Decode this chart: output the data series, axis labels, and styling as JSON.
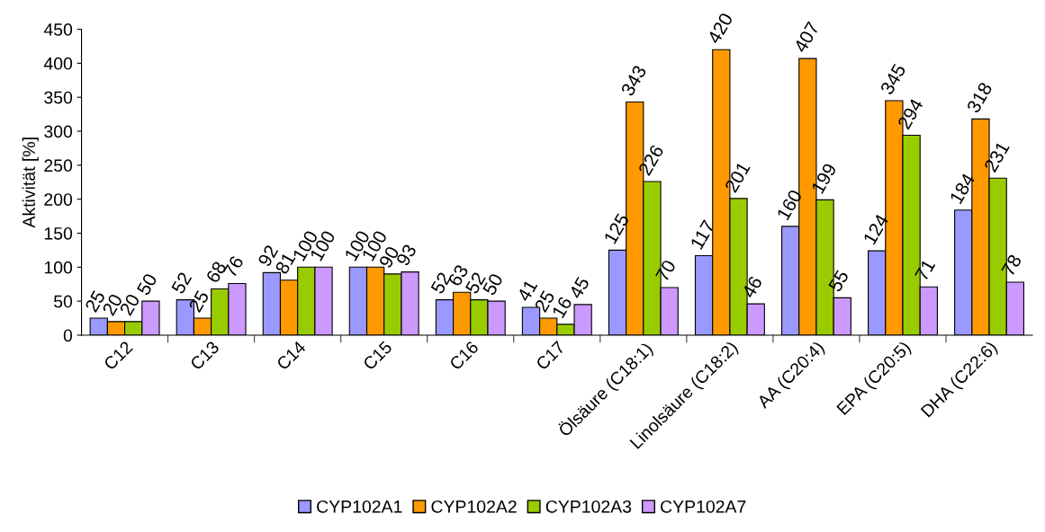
{
  "chart_data": {
    "type": "bar",
    "ylabel": "Aktivität [%]",
    "categories": [
      "C12",
      "C13",
      "C14",
      "C15",
      "C16",
      "C17",
      "Ölsäure (C18:1)",
      "Linolsäure (C18:2)",
      "AA (C20:4)",
      "EPA (C20:5)",
      "DHA (C22:6)"
    ],
    "series": [
      {
        "name": "CYP102A1",
        "color": "#9999ff",
        "values": [
          25,
          52,
          92,
          100,
          52,
          41,
          125,
          117,
          160,
          124,
          184
        ]
      },
      {
        "name": "CYP102A2",
        "color": "#ff9900",
        "values": [
          20,
          25,
          81,
          100,
          63,
          25,
          343,
          420,
          407,
          345,
          318
        ]
      },
      {
        "name": "CYP102A3",
        "color": "#99cc00",
        "values": [
          20,
          68,
          100,
          90,
          52,
          16,
          226,
          201,
          199,
          294,
          231
        ]
      },
      {
        "name": "CYP102A7",
        "color": "#cc99ff",
        "values": [
          50,
          76,
          100,
          93,
          50,
          45,
          70,
          46,
          55,
          71,
          78
        ]
      }
    ],
    "ylim": [
      0,
      450
    ],
    "yticks": [
      0,
      50,
      100,
      150,
      200,
      250,
      300,
      350,
      400,
      450
    ],
    "data_labels": true,
    "legend": "bottom",
    "grid": false
  }
}
